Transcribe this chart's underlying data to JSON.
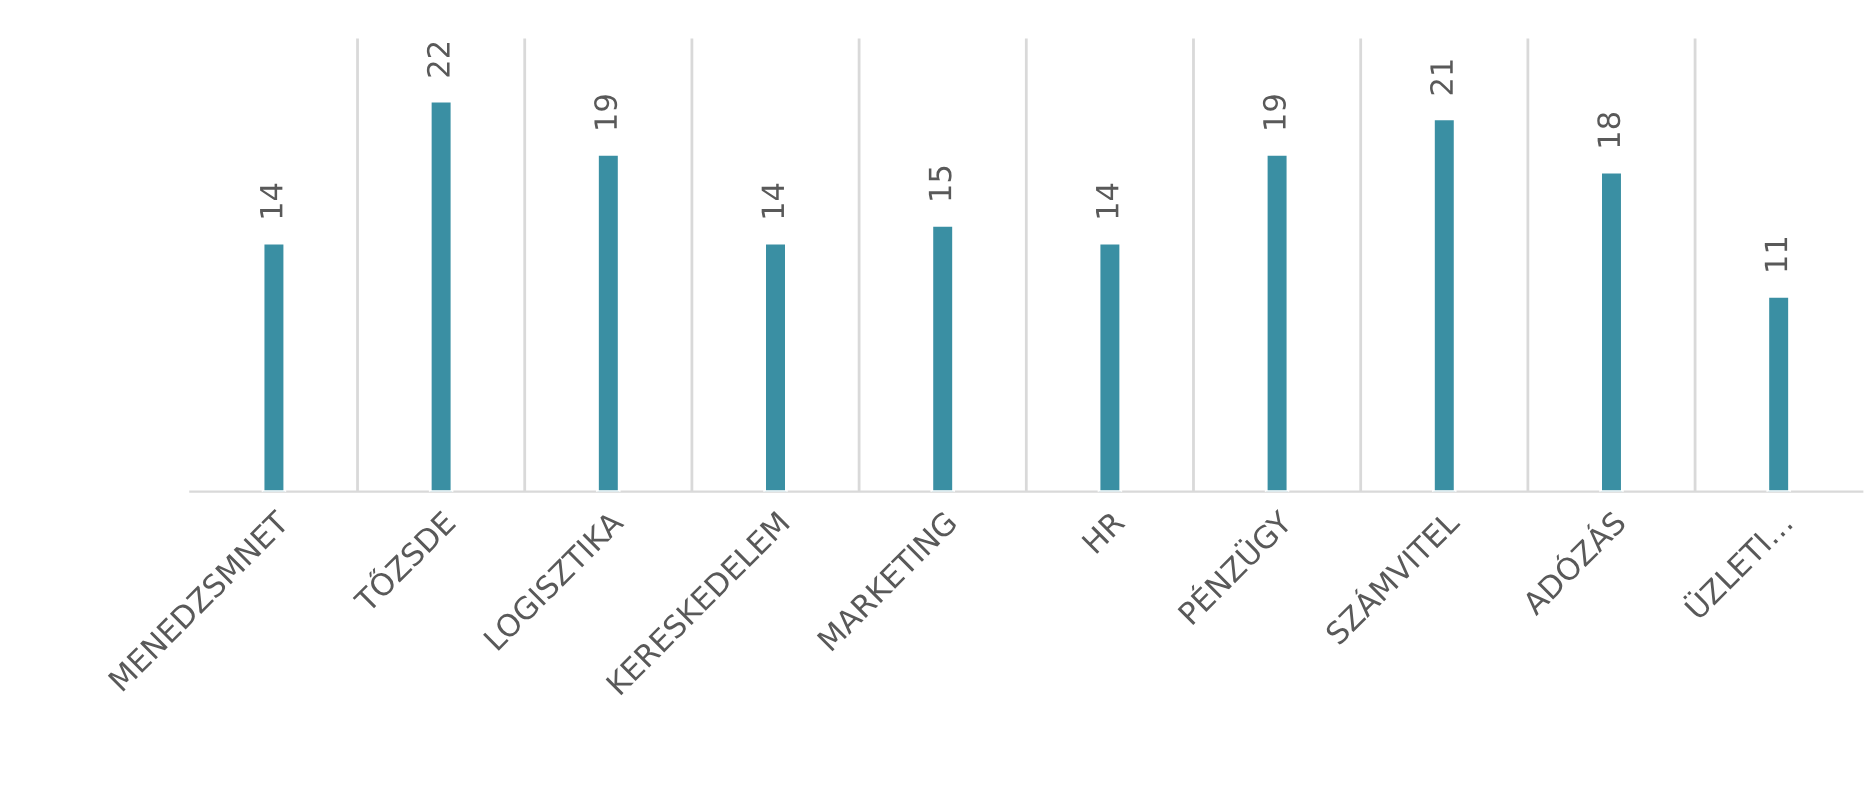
{
  "chart_data": {
    "type": "bar",
    "categories": [
      "MENEDZSMNET",
      "TŐZSDE",
      "LOGISZTIKA",
      "KERESKEDELEM",
      "MARKETING",
      "HR",
      "PÉNZÜGY",
      "SZÁMVITEL",
      "ADÓZÁS",
      "ÜZLETI…"
    ],
    "values": [
      14,
      22,
      19,
      14,
      15,
      14,
      19,
      21,
      18,
      11
    ],
    "color": "#3a8fa3",
    "data_labels": true,
    "grid": "x"
  }
}
